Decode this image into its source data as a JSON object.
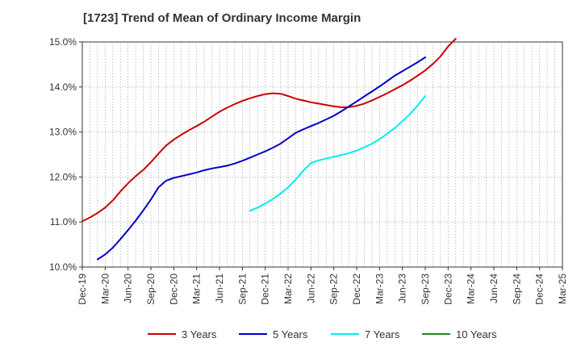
{
  "chart_data": {
    "type": "line",
    "title": "[1723]  Trend of Mean of Ordinary Income Margin",
    "xlabel": "",
    "ylabel": "",
    "ylim": [
      10.0,
      15.0
    ],
    "y_ticks": [
      "10.0%",
      "11.0%",
      "12.0%",
      "13.0%",
      "14.0%",
      "15.0%"
    ],
    "x_ticks": [
      "Dec-19",
      "Mar-20",
      "Jun-20",
      "Sep-20",
      "Dec-20",
      "Mar-21",
      "Jun-21",
      "Sep-21",
      "Dec-21",
      "Mar-22",
      "Jun-22",
      "Sep-22",
      "Dec-22",
      "Mar-23",
      "Jun-23",
      "Sep-23",
      "Dec-23",
      "Mar-24",
      "Jun-24",
      "Sep-24",
      "Dec-24",
      "Mar-25"
    ],
    "grid": true,
    "legend_position": "bottom",
    "series": [
      {
        "name": "3 Years",
        "color": "#cc0000",
        "values": [
          11.02,
          11.1,
          11.2,
          11.32,
          11.48,
          11.68,
          11.86,
          12.02,
          12.16,
          12.33,
          12.52,
          12.7,
          12.83,
          12.94,
          13.04,
          13.13,
          13.23,
          13.34,
          13.45,
          13.54,
          13.62,
          13.69,
          13.75,
          13.8,
          13.84,
          13.86,
          13.85,
          13.8,
          13.74,
          13.7,
          13.66,
          13.63,
          13.6,
          13.57,
          13.55,
          13.55,
          13.58,
          13.63,
          13.7,
          13.78,
          13.86,
          13.95,
          14.04,
          14.14,
          14.25,
          14.37,
          14.51,
          14.68,
          14.9,
          15.07
        ]
      },
      {
        "name": "5 Years",
        "color": "#0000cc",
        "values": [
          null,
          null,
          10.17,
          10.28,
          10.43,
          10.62,
          10.82,
          11.03,
          11.26,
          11.5,
          11.77,
          11.92,
          11.98,
          12.02,
          12.06,
          12.1,
          12.15,
          12.19,
          12.22,
          12.25,
          12.3,
          12.36,
          12.43,
          12.5,
          12.57,
          12.65,
          12.74,
          12.86,
          12.98,
          13.06,
          13.13,
          13.2,
          13.28,
          13.36,
          13.46,
          13.57,
          13.68,
          13.79,
          13.9,
          14.01,
          14.13,
          14.25,
          14.35,
          14.45,
          14.55,
          14.66
        ]
      },
      {
        "name": "7 Years",
        "color": "#00eeee",
        "values": [
          null,
          null,
          null,
          null,
          null,
          null,
          null,
          null,
          null,
          null,
          null,
          null,
          null,
          null,
          null,
          null,
          null,
          null,
          null,
          null,
          null,
          null,
          11.25,
          11.32,
          11.41,
          11.51,
          11.63,
          11.77,
          11.94,
          12.14,
          12.31,
          12.37,
          12.41,
          12.45,
          12.49,
          12.53,
          12.59,
          12.66,
          12.74,
          12.84,
          12.96,
          13.09,
          13.24,
          13.4,
          13.59,
          13.8
        ]
      },
      {
        "name": "10 Years",
        "color": "#228822",
        "values": []
      }
    ]
  }
}
